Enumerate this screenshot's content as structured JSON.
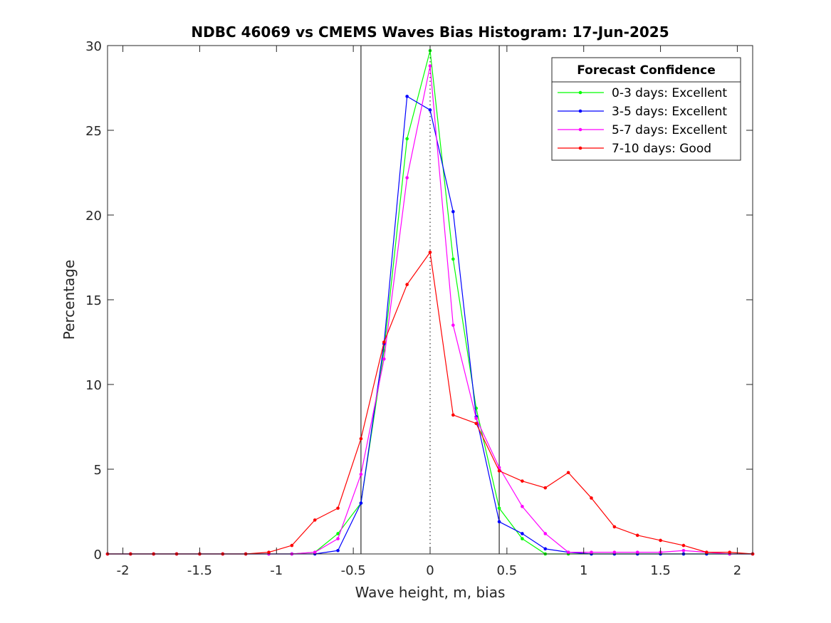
{
  "chart_data": {
    "type": "line",
    "title": "NDBC 46069 vs CMEMS Waves Bias Histogram: 17-Jun-2025",
    "xlabel": "Wave height, m, bias",
    "ylabel": "Percentage",
    "xlim": [
      -2.1,
      2.1
    ],
    "ylim": [
      0,
      30
    ],
    "xticks": [
      -2,
      -1.5,
      -1,
      -0.5,
      0,
      0.5,
      1,
      1.5,
      2
    ],
    "xtick_labels": [
      "-2",
      "-1.5",
      "-1",
      "-0.5",
      "0",
      "0.5",
      "1",
      "1.5",
      "2"
    ],
    "yticks": [
      0,
      5,
      10,
      15,
      20,
      25,
      30
    ],
    "ytick_labels": [
      "0",
      "5",
      "10",
      "15",
      "20",
      "25",
      "30"
    ],
    "grid": false,
    "vertical_lines": [
      {
        "x": -0.45,
        "style": "solid",
        "color": "#000000"
      },
      {
        "x": 0,
        "style": "dotted",
        "color": "#000000"
      },
      {
        "x": 0.45,
        "style": "solid",
        "color": "#000000"
      }
    ],
    "legend": {
      "title": "Forecast Confidence",
      "position": "top-right"
    },
    "x": [
      -2.1,
      -1.95,
      -1.8,
      -1.65,
      -1.5,
      -1.35,
      -1.2,
      -1.05,
      -0.9,
      -0.75,
      -0.6,
      -0.45,
      -0.3,
      -0.15,
      0,
      0.15,
      0.3,
      0.45,
      0.6,
      0.75,
      0.9,
      1.05,
      1.2,
      1.35,
      1.5,
      1.65,
      1.8,
      1.95,
      2.1
    ],
    "series": [
      {
        "name": "0-3 days: Excellent",
        "color": "#00ff00",
        "values": [
          0,
          0,
          0,
          0,
          0,
          0,
          0,
          0,
          0,
          0.1,
          1.2,
          3.0,
          12.0,
          24.5,
          29.7,
          17.4,
          8.6,
          2.7,
          0.9,
          0,
          0,
          0,
          0,
          0,
          0,
          0,
          0,
          0,
          0
        ]
      },
      {
        "name": "3-5 days: Excellent",
        "color": "#0000ff",
        "values": [
          0,
          0,
          0,
          0,
          0,
          0,
          0,
          0,
          0,
          0,
          0.2,
          3.0,
          12.4,
          27.0,
          26.2,
          20.2,
          8.1,
          1.9,
          1.2,
          0.3,
          0.1,
          0,
          0,
          0,
          0,
          0,
          0,
          0,
          0
        ]
      },
      {
        "name": "5-7 days: Excellent",
        "color": "#ff00ff",
        "values": [
          0,
          0,
          0,
          0,
          0,
          0,
          0,
          0,
          0,
          0.1,
          0.9,
          4.7,
          11.5,
          22.2,
          28.8,
          13.5,
          8.0,
          5.1,
          2.8,
          1.2,
          0.1,
          0.1,
          0.1,
          0.1,
          0.1,
          0.2,
          0.1,
          0,
          0
        ]
      },
      {
        "name": "7-10 days: Good",
        "color": "#ff0000",
        "values": [
          0,
          0,
          0,
          0,
          0,
          0,
          0,
          0.1,
          0.5,
          2.0,
          2.7,
          6.8,
          12.5,
          15.9,
          17.8,
          8.2,
          7.7,
          4.9,
          4.3,
          3.9,
          4.8,
          3.3,
          1.6,
          1.1,
          0.8,
          0.5,
          0.1,
          0.1,
          0
        ]
      }
    ]
  }
}
